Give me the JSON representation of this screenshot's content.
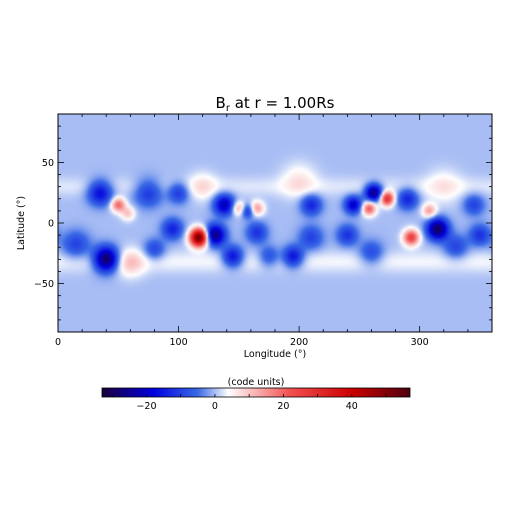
{
  "chart_data": {
    "type": "heatmap",
    "title": "B",
    "title_subscript": "r",
    "title_suffix": " at r = 1.00Rs",
    "xlabel": "Longitude (°)",
    "ylabel": "Latitude (°)",
    "xlim": [
      0,
      360
    ],
    "ylim": [
      -90,
      90
    ],
    "x_ticks": [
      0,
      100,
      200,
      300
    ],
    "x_tick_labels": [
      "0",
      "100",
      "200",
      "300"
    ],
    "y_ticks": [
      -50,
      0,
      50
    ],
    "y_tick_labels": [
      "−50",
      "0",
      "50"
    ],
    "background_value": 0,
    "features": [
      {
        "lon": 40,
        "lat": -30,
        "value": -32,
        "sigma": 7
      },
      {
        "lon": 35,
        "lat": 25,
        "value": -18,
        "sigma": 7
      },
      {
        "lon": 50,
        "lat": 15,
        "value": 20,
        "sigma": 4
      },
      {
        "lon": 75,
        "lat": 25,
        "value": -12,
        "sigma": 8
      },
      {
        "lon": 58,
        "lat": 8,
        "value": 10,
        "sigma": 4
      },
      {
        "lon": 15,
        "lat": -18,
        "value": -10,
        "sigma": 8
      },
      {
        "lon": 80,
        "lat": -22,
        "value": -10,
        "sigma": 6
      },
      {
        "lon": 100,
        "lat": 25,
        "value": -12,
        "sigma": 6
      },
      {
        "lon": 95,
        "lat": -5,
        "value": -14,
        "sigma": 6
      },
      {
        "lon": 117,
        "lat": -12,
        "value": 55,
        "sigma": 5
      },
      {
        "lon": 130,
        "lat": -10,
        "value": -28,
        "sigma": 6
      },
      {
        "lon": 138,
        "lat": 15,
        "value": -22,
        "sigma": 6
      },
      {
        "lon": 150,
        "lat": 12,
        "value": 15,
        "sigma": 4
      },
      {
        "lon": 157,
        "lat": 10,
        "value": -14,
        "sigma": 4
      },
      {
        "lon": 165,
        "lat": 12,
        "value": 15,
        "sigma": 4
      },
      {
        "lon": 145,
        "lat": -28,
        "value": -18,
        "sigma": 6
      },
      {
        "lon": 165,
        "lat": -8,
        "value": -12,
        "sigma": 6
      },
      {
        "lon": 175,
        "lat": -28,
        "value": -10,
        "sigma": 6
      },
      {
        "lon": 195,
        "lat": -28,
        "value": -18,
        "sigma": 6
      },
      {
        "lon": 210,
        "lat": -12,
        "value": -10,
        "sigma": 7
      },
      {
        "lon": 210,
        "lat": 15,
        "value": -14,
        "sigma": 6
      },
      {
        "lon": 245,
        "lat": 15,
        "value": -20,
        "sigma": 5
      },
      {
        "lon": 258,
        "lat": 12,
        "value": 22,
        "sigma": 4
      },
      {
        "lon": 262,
        "lat": 25,
        "value": -28,
        "sigma": 5
      },
      {
        "lon": 273,
        "lat": 20,
        "value": 30,
        "sigma": 4
      },
      {
        "lon": 240,
        "lat": -10,
        "value": -12,
        "sigma": 6
      },
      {
        "lon": 260,
        "lat": -25,
        "value": -10,
        "sigma": 7
      },
      {
        "lon": 290,
        "lat": 20,
        "value": -14,
        "sigma": 6
      },
      {
        "lon": 293,
        "lat": -12,
        "value": 26,
        "sigma": 4.5
      },
      {
        "lon": 308,
        "lat": 10,
        "value": 14,
        "sigma": 4
      },
      {
        "lon": 315,
        "lat": -5,
        "value": -30,
        "sigma": 6
      },
      {
        "lon": 330,
        "lat": -20,
        "value": -10,
        "sigma": 7
      },
      {
        "lon": 345,
        "lat": 15,
        "value": -10,
        "sigma": 6
      },
      {
        "lon": 350,
        "lat": -10,
        "value": -12,
        "sigma": 6
      },
      {
        "lon": 60,
        "lat": -33,
        "value": 8,
        "sigma": 8
      },
      {
        "lon": 200,
        "lat": 35,
        "value": 6,
        "sigma": 10
      },
      {
        "lon": 120,
        "lat": 30,
        "value": 6,
        "sigma": 8
      },
      {
        "lon": 320,
        "lat": 30,
        "value": 5,
        "sigma": 10
      }
    ],
    "colorbar": {
      "label": "(code units)",
      "min": -33,
      "max": 57,
      "ticks": [
        -20,
        0,
        20,
        40
      ],
      "tick_labels": [
        "−20",
        "0",
        "20",
        "40"
      ],
      "stops": [
        {
          "value": -33,
          "color": "#1a003d"
        },
        {
          "value": -18,
          "color": "#0000dd"
        },
        {
          "value": -5,
          "color": "#3a6ae6"
        },
        {
          "value": 4,
          "color": "#ffffff"
        },
        {
          "value": 22,
          "color": "#f25050"
        },
        {
          "value": 40,
          "color": "#cc0000"
        },
        {
          "value": 57,
          "color": "#4d0010"
        }
      ]
    }
  }
}
